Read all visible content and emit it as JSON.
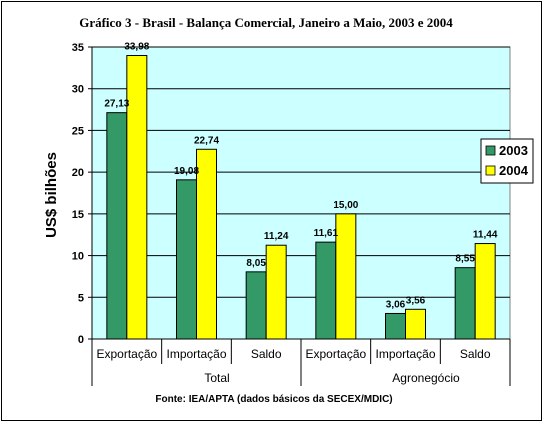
{
  "chart_data": {
    "type": "bar",
    "title": "Gráfico 3 - Brasil - Balança Comercial, Janeiro a Maio, 2003 e 2004",
    "ylabel": "US$ bilhões",
    "xlabel": "",
    "ylim": [
      0,
      35
    ],
    "yticks": [
      0,
      5,
      10,
      15,
      20,
      25,
      30,
      35
    ],
    "categories": [
      "Exportação",
      "Importação",
      "Saldo",
      "Exportação",
      "Importação",
      "Saldo"
    ],
    "groups": [
      {
        "label": "Total",
        "categories": [
          "Exportação",
          "Importação",
          "Saldo"
        ]
      },
      {
        "label": "Agronegócio",
        "categories": [
          "Exportação",
          "Importação",
          "Saldo"
        ]
      }
    ],
    "series": [
      {
        "name": "2003",
        "color": "#339966",
        "values": [
          27.13,
          19.08,
          8.05,
          11.61,
          3.06,
          8.55
        ],
        "labels": [
          "27,13",
          "19,08",
          "8,05",
          "11,61",
          "3,06",
          "8,55"
        ]
      },
      {
        "name": "2004",
        "color": "#ffff00",
        "values": [
          33.98,
          22.74,
          11.24,
          15.0,
          3.56,
          11.44
        ],
        "labels": [
          "33,98",
          "22,74",
          "11,24",
          "15,00",
          "3,56",
          "11,44"
        ]
      }
    ],
    "plot_background": "#ccffff",
    "grid": true,
    "legend_position": "right",
    "source": "Fonte: IEA/APTA (dados básicos da SECEX/MDIC)"
  }
}
